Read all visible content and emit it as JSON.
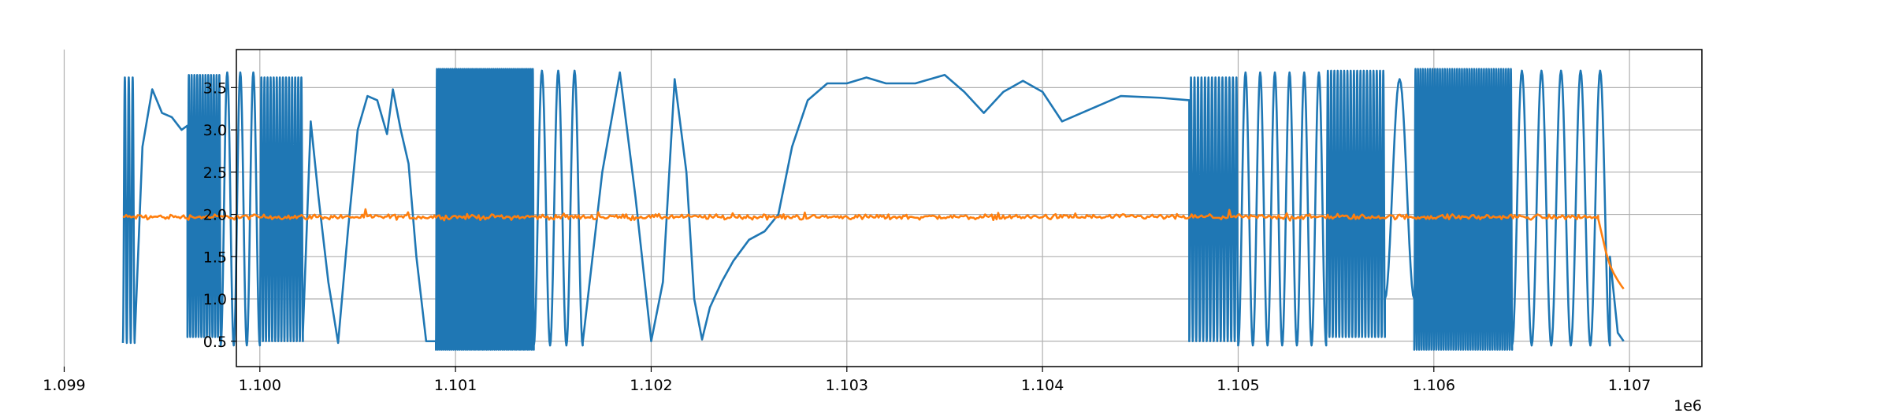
{
  "chart_data": {
    "type": "line",
    "title": "",
    "xlabel": "",
    "ylabel": "",
    "x_offset_text": "1e6",
    "xlim": [
      1.09988,
      1.10737
    ],
    "ylim": [
      0.2,
      3.95
    ],
    "grid": true,
    "legend": "none",
    "x_ticks": [
      1.099,
      1.1,
      1.101,
      1.102,
      1.103,
      1.104,
      1.105,
      1.106,
      1.107
    ],
    "x_tick_labels": [
      "1.099",
      "1.100",
      "1.101",
      "1.102",
      "1.103",
      "1.104",
      "1.105",
      "1.106",
      "1.107"
    ],
    "y_ticks": [
      0.5,
      1.0,
      1.5,
      2.0,
      2.5,
      3.0,
      3.5
    ],
    "y_tick_labels": [
      "0.5",
      "1.0",
      "1.5",
      "2.0",
      "2.5",
      "3.0",
      "3.5"
    ],
    "series": [
      {
        "color": "#1f77b4",
        "segments": [
          {
            "kind": "osc",
            "x0": 1.0993,
            "x1": 1.09936,
            "lo": 0.48,
            "hi": 3.62,
            "cycles": 3
          },
          {
            "kind": "pts",
            "x": [
              1.09936,
              1.0994,
              1.09945,
              1.0995,
              1.09955,
              1.0996,
              1.09963
            ],
            "y": [
              0.5,
              2.8,
              3.48,
              3.2,
              3.15,
              3.0,
              3.05
            ]
          },
          {
            "kind": "osc",
            "x0": 1.09963,
            "x1": 1.0998,
            "lo": 0.55,
            "hi": 3.65,
            "cycles": 12
          },
          {
            "kind": "osc",
            "x0": 1.0998,
            "x1": 1.1,
            "lo": 0.45,
            "hi": 3.68,
            "cycles": 3
          },
          {
            "kind": "osc",
            "x0": 1.1,
            "x1": 1.10022,
            "lo": 0.5,
            "hi": 3.62,
            "cycles": 14
          },
          {
            "kind": "pts",
            "x": [
              1.10022,
              1.10026,
              1.1003,
              1.10035,
              1.1004,
              1.10045,
              1.1005,
              1.10055,
              1.1006,
              1.10065,
              1.10068,
              1.10072,
              1.10076,
              1.1008,
              1.10085,
              1.1009
            ],
            "y": [
              0.6,
              3.1,
              2.2,
              1.2,
              0.48,
              1.8,
              3.0,
              3.4,
              3.35,
              2.95,
              3.48,
              3.0,
              2.6,
              1.5,
              0.5,
              0.5
            ]
          },
          {
            "kind": "osc",
            "x0": 1.1009,
            "x1": 1.1014,
            "lo": 0.4,
            "hi": 3.72,
            "cycles": 50
          },
          {
            "kind": "osc",
            "x0": 1.1014,
            "x1": 1.10165,
            "lo": 0.45,
            "hi": 3.7,
            "cycles": 3
          },
          {
            "kind": "pts",
            "x": [
              1.10165,
              1.10175,
              1.10184,
              1.10192,
              1.102,
              1.10206,
              1.10212,
              1.10218,
              1.10222,
              1.10226,
              1.1023,
              1.10236,
              1.10242,
              1.1025,
              1.10258,
              1.10265,
              1.10272,
              1.1028,
              1.1029,
              1.103,
              1.1031,
              1.1032,
              1.10335,
              1.1035,
              1.1036,
              1.1037,
              1.1038,
              1.1039,
              1.104,
              1.1041,
              1.1042,
              1.1044,
              1.1046,
              1.10475
            ],
            "y": [
              0.48,
              2.5,
              3.68,
              2.2,
              0.5,
              1.2,
              3.6,
              2.5,
              1.0,
              0.52,
              0.9,
              1.2,
              1.45,
              1.7,
              1.8,
              2.0,
              2.8,
              3.35,
              3.55,
              3.55,
              3.62,
              3.55,
              3.55,
              3.65,
              3.45,
              3.2,
              3.45,
              3.58,
              3.45,
              3.1,
              3.2,
              3.4,
              3.38,
              3.35
            ]
          },
          {
            "kind": "osc",
            "x0": 1.10475,
            "x1": 1.105,
            "lo": 0.5,
            "hi": 3.62,
            "cycles": 14
          },
          {
            "kind": "osc",
            "x0": 1.105,
            "x1": 1.10545,
            "lo": 0.45,
            "hi": 3.68,
            "cycles": 6
          },
          {
            "kind": "osc",
            "x0": 1.10545,
            "x1": 1.10575,
            "lo": 0.55,
            "hi": 3.7,
            "cycles": 18
          },
          {
            "kind": "osc",
            "x0": 1.10575,
            "x1": 1.1059,
            "lo": 1.0,
            "hi": 3.6,
            "cycles": 1
          },
          {
            "kind": "osc",
            "x0": 1.1059,
            "x1": 1.1064,
            "lo": 0.4,
            "hi": 3.72,
            "cycles": 40
          },
          {
            "kind": "osc",
            "x0": 1.1064,
            "x1": 1.1069,
            "lo": 0.45,
            "hi": 3.7,
            "cycles": 5
          },
          {
            "kind": "pts",
            "x": [
              1.1069,
              1.10694,
              1.10697
            ],
            "y": [
              1.5,
              0.6,
              0.5
            ]
          }
        ]
      },
      {
        "color": "#ff7f0e",
        "segments": [
          {
            "kind": "noise",
            "x0": 1.0993,
            "x1": 1.10684,
            "base": 1.97,
            "amp": 0.045,
            "n": 900
          },
          {
            "kind": "pts",
            "x": [
              1.10684,
              1.10686,
              1.10688,
              1.1069,
              1.10692,
              1.10694,
              1.10696,
              1.10697
            ],
            "y": [
              1.95,
              1.75,
              1.55,
              1.4,
              1.3,
              1.22,
              1.15,
              1.12
            ]
          }
        ]
      }
    ]
  }
}
